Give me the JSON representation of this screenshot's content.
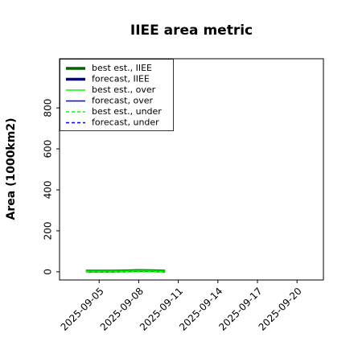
{
  "chart_data": {
    "type": "line",
    "title": "IIEE area metric",
    "ylabel": "Area (1000km2)",
    "x": [
      "2025-09-04",
      "2025-09-05",
      "2025-09-06",
      "2025-09-07",
      "2025-09-08",
      "2025-09-09",
      "2025-09-10"
    ],
    "series": [
      {
        "name": "best est., IIEE",
        "color": "#006400",
        "width": 3.5,
        "dash": "solid",
        "values": [
          3,
          3,
          3,
          4,
          6,
          5,
          3
        ]
      },
      {
        "name": "forecast, IIEE",
        "color": "#00008b",
        "width": 3.5,
        "dash": "solid",
        "values": [
          null,
          null,
          null,
          null,
          null,
          null,
          null
        ]
      },
      {
        "name": "best est., over",
        "color": "#00ff00",
        "width": 1.5,
        "dash": "solid",
        "values": [
          3,
          3,
          3,
          4,
          6,
          5,
          3
        ]
      },
      {
        "name": "forecast, over",
        "color": "#0000ff",
        "width": 1.5,
        "dash": "solid",
        "values": [
          null,
          null,
          null,
          null,
          null,
          null,
          null
        ]
      },
      {
        "name": "best est., under",
        "color": "#00ff00",
        "width": 1.5,
        "dash": "dashed",
        "values": [
          0,
          0,
          0,
          0,
          0,
          0,
          0
        ]
      },
      {
        "name": "forecast, under",
        "color": "#0000ff",
        "width": 1.5,
        "dash": "dashed",
        "values": [
          null,
          null,
          null,
          null,
          null,
          null,
          null
        ]
      }
    ],
    "xlim": [
      "2025-09-02",
      "2025-09-22"
    ],
    "xticks": [
      "2025-09-05",
      "2025-09-08",
      "2025-09-11",
      "2025-09-14",
      "2025-09-17",
      "2025-09-20"
    ],
    "highlight_xtick": "2025-09-11",
    "highlight_color": "#228b22",
    "ylim": [
      -40,
      1040
    ],
    "yticks": [
      0,
      200,
      400,
      600,
      800
    ],
    "legend": "upper left"
  }
}
